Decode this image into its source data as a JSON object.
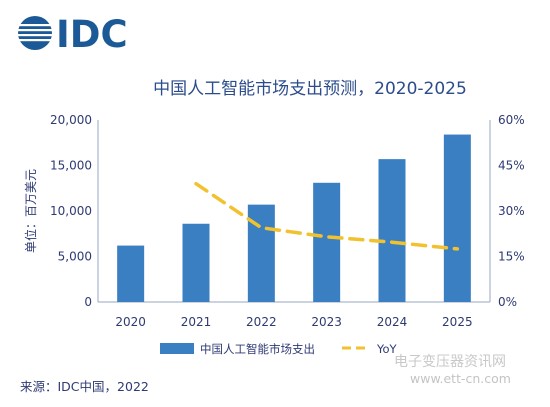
{
  "logo": {
    "text": "IDC"
  },
  "chart_data": {
    "type": "bar",
    "title": "中国人工智能市场支出预测，2020-2025",
    "ylabel": "单位：百万美元",
    "categories": [
      "2020",
      "2021",
      "2022",
      "2023",
      "2024",
      "2025"
    ],
    "series": [
      {
        "name": "中国人工智能市场支出",
        "type": "bar",
        "axis": "left",
        "values": [
          6200,
          8600,
          10700,
          13100,
          15700,
          18400
        ],
        "color": "#3a7fc2"
      },
      {
        "name": "YoY",
        "type": "line",
        "axis": "right",
        "dashed": true,
        "values": [
          null,
          0.39,
          0.245,
          0.215,
          0.197,
          0.175
        ],
        "color": "#f2c12e"
      }
    ],
    "ylim_left": [
      0,
      20000
    ],
    "yticks_left": [
      "0",
      "5,000",
      "10,000",
      "15,000",
      "20,000"
    ],
    "ylim_right": [
      0,
      0.6
    ],
    "yticks_right": [
      "0%",
      "15%",
      "30%",
      "45%",
      "60%"
    ],
    "grid": false,
    "legend_position": "bottom"
  },
  "source": "来源：IDC中国，2022",
  "watermark": {
    "name": "电子变压器资讯网",
    "url": "www.ett-cn.com"
  }
}
